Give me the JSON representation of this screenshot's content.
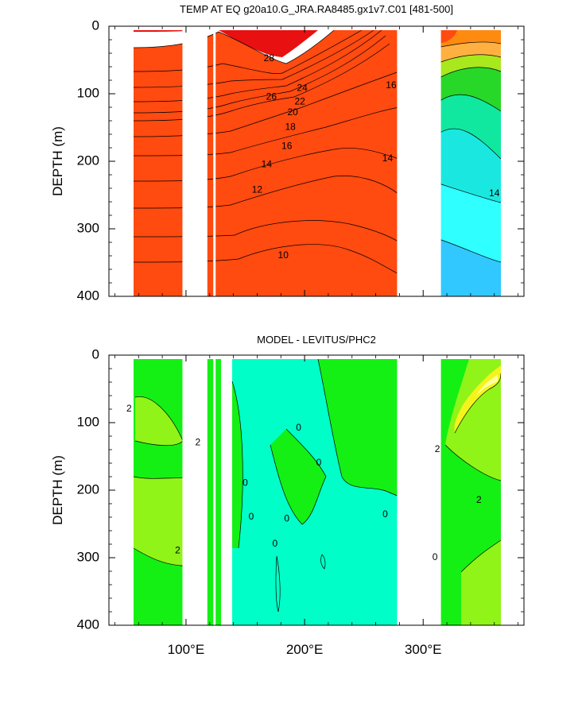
{
  "chart_data": [
    {
      "type": "heatmap",
      "subtype": "contour",
      "title": "TEMP AT EQ g20a10.G_JRA.RA8485.gx1v7.C01 [481-500]",
      "xlabel": "",
      "ylabel": "DEPTH (m)",
      "xlim": [
        35,
        385
      ],
      "ylim": [
        400,
        0
      ],
      "yticks": [
        0,
        100,
        200,
        300,
        400
      ],
      "ytick_labels": [
        "0",
        "100",
        "200",
        "300",
        "400"
      ],
      "grid": false,
      "land_gaps_lon": [
        [
          97,
          118
        ],
        [
          123,
          125
        ],
        [
          278,
          315
        ]
      ],
      "colors": {
        "t28": "#e81010",
        "t26": "#ff4a10",
        "t24": "#ff8a10",
        "t22": "#ffb040",
        "t20": "#ffe030",
        "t18": "#a8e81c",
        "t16": "#28d828",
        "t14": "#10e8a0",
        "t12": "#1ae8e0",
        "t11": "#30ffff",
        "t10": "#30c8ff",
        "t9": "#1898ff",
        "t8": "#1060e8",
        "t7": "#0a30d8"
      },
      "contour_labels": [
        {
          "text": "28",
          "lon": 170,
          "depth": 48
        },
        {
          "text": "26",
          "lon": 172,
          "depth": 105
        },
        {
          "text": "24",
          "lon": 198,
          "depth": 92
        },
        {
          "text": "22",
          "lon": 196,
          "depth": 112
        },
        {
          "text": "20",
          "lon": 190,
          "depth": 128
        },
        {
          "text": "18",
          "lon": 188,
          "depth": 150
        },
        {
          "text": "16",
          "lon": 185,
          "depth": 178
        },
        {
          "text": "14",
          "lon": 168,
          "depth": 205
        },
        {
          "text": "12",
          "lon": 160,
          "depth": 243
        },
        {
          "text": "10",
          "lon": 182,
          "depth": 340
        },
        {
          "text": "16",
          "lon": 273,
          "depth": 88
        },
        {
          "text": "14",
          "lon": 270,
          "depth": 196
        },
        {
          "text": "14",
          "lon": 360,
          "depth": 248
        }
      ]
    },
    {
      "type": "heatmap",
      "subtype": "contour",
      "title": "MODEL - LEVITUS/PHC2",
      "xlabel": "",
      "ylabel": "DEPTH (m)",
      "xlim": [
        35,
        385
      ],
      "ylim": [
        400,
        0
      ],
      "xticks": [
        100,
        200,
        300
      ],
      "xtick_labels": [
        "100°E",
        "200°E",
        "300°E"
      ],
      "yticks": [
        0,
        100,
        200,
        300,
        400
      ],
      "ytick_labels": [
        "0",
        "100",
        "200",
        "300",
        "400"
      ],
      "grid": false,
      "land_gaps_lon": [
        [
          97,
          118
        ],
        [
          123,
          125
        ],
        [
          278,
          315
        ]
      ],
      "colors": {
        "d_neg": "#00ffc8",
        "d_0": "#14f014",
        "d_2": "#90f418",
        "d_3": "#f4f41c",
        "d_4": "#ffffa0"
      },
      "contour_labels": [
        {
          "text": "2",
          "lon": 52,
          "depth": 80
        },
        {
          "text": "2",
          "lon": 110,
          "depth": 130
        },
        {
          "text": "0",
          "lon": 195,
          "depth": 108
        },
        {
          "text": "0",
          "lon": 212,
          "depth": 160
        },
        {
          "text": "0",
          "lon": 150,
          "depth": 190
        },
        {
          "text": "0",
          "lon": 155,
          "depth": 240
        },
        {
          "text": "0",
          "lon": 185,
          "depth": 243
        },
        {
          "text": "0",
          "lon": 175,
          "depth": 280
        },
        {
          "text": "0",
          "lon": 268,
          "depth": 236
        },
        {
          "text": "2",
          "lon": 93,
          "depth": 290
        },
        {
          "text": "2",
          "lon": 312,
          "depth": 140
        },
        {
          "text": "2",
          "lon": 347,
          "depth": 215
        },
        {
          "text": "0",
          "lon": 310,
          "depth": 300
        }
      ]
    }
  ]
}
